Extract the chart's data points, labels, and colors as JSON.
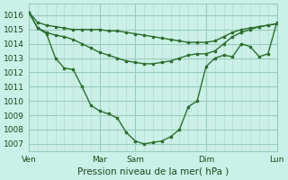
{
  "background_color": "#caf0e8",
  "grid_color_major": "#99ccbb",
  "grid_color_minor": "#bbddcc",
  "line_color": "#2d6e2d",
  "xlabel": "Pression niveau de la mer( hPa )",
  "ylim": [
    1006.5,
    1016.8
  ],
  "yticks": [
    1007,
    1008,
    1009,
    1010,
    1011,
    1012,
    1013,
    1014,
    1015,
    1016
  ],
  "xtick_labels": [
    "Ven",
    "Mar",
    "Sam",
    "Dim",
    "Lun"
  ],
  "xtick_positions": [
    0,
    48,
    72,
    120,
    168
  ],
  "total_x": 168,
  "line1_x": [
    0,
    6,
    12,
    18,
    24,
    30,
    36,
    42,
    48,
    54,
    60,
    66,
    72,
    78,
    84,
    90,
    96,
    102,
    108,
    114,
    120,
    126,
    132,
    138,
    144,
    150,
    156,
    162,
    168
  ],
  "line1_y": [
    1016.2,
    1015.5,
    1015.3,
    1015.2,
    1015.1,
    1015.0,
    1015.0,
    1015.0,
    1015.0,
    1014.9,
    1014.9,
    1014.8,
    1014.7,
    1014.6,
    1014.5,
    1014.4,
    1014.3,
    1014.2,
    1014.1,
    1014.1,
    1014.1,
    1014.2,
    1014.5,
    1014.8,
    1015.0,
    1015.1,
    1015.2,
    1015.3,
    1015.4
  ],
  "line2_x": [
    0,
    6,
    12,
    18,
    24,
    30,
    36,
    42,
    48,
    54,
    60,
    66,
    72,
    78,
    84,
    90,
    96,
    102,
    108,
    114,
    120,
    126,
    132,
    138,
    144,
    150,
    156,
    162,
    168
  ],
  "line2_y": [
    1016.2,
    1015.1,
    1014.8,
    1014.6,
    1014.5,
    1014.3,
    1014.0,
    1013.7,
    1013.4,
    1013.2,
    1013.0,
    1012.8,
    1012.7,
    1012.6,
    1012.6,
    1012.7,
    1012.8,
    1013.0,
    1013.2,
    1013.3,
    1013.3,
    1013.5,
    1014.0,
    1014.5,
    1014.8,
    1015.0,
    1015.2,
    1015.3,
    1015.4
  ],
  "line3_x": [
    0,
    6,
    12,
    18,
    24,
    30,
    36,
    42,
    48,
    54,
    60,
    66,
    72,
    78,
    84,
    90,
    96,
    102,
    108,
    114,
    120,
    126,
    132,
    138,
    144,
    150,
    156,
    162,
    168
  ],
  "line3_y": [
    1016.2,
    1015.1,
    1014.7,
    1013.0,
    1012.3,
    1012.2,
    1011.0,
    1009.7,
    1009.3,
    1009.1,
    1008.8,
    1007.8,
    1007.2,
    1007.0,
    1007.1,
    1007.2,
    1007.5,
    1008.0,
    1009.6,
    1010.0,
    1012.4,
    1013.0,
    1013.2,
    1013.1,
    1014.0,
    1013.8,
    1013.1,
    1013.3,
    1015.5
  ]
}
